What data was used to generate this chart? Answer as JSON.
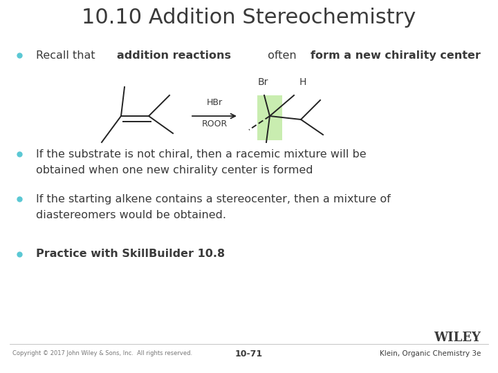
{
  "title": "10.10 Addition Stereochemistry",
  "title_fontsize": 22,
  "title_color": "#3a3a3a",
  "background_color": "#ffffff",
  "bullet_color": "#5bc8d4",
  "bullet1_normal": "Recall that ",
  "bullet1_bold1": "addition reactions",
  "bullet1_normal2": " often ",
  "bullet1_bold2": "form a new chirality center",
  "bullet2_line1": "If the substrate is not chiral, then a racemic mixture will be",
  "bullet2_line2": "obtained when one new chirality center is formed",
  "bullet3_line1": "If the starting alkene contains a stereocenter, then a mixture of",
  "bullet3_line2": "diastereomers would be obtained.",
  "bullet4": "Practice with SkillBuilder 10.8",
  "footer_left": "Copyright © 2017 John Wiley & Sons, Inc.  All rights reserved.",
  "footer_center": "10-71",
  "footer_right_line1": "WILEY",
  "footer_right_line2": "Klein, Organic Chemistry 3e",
  "text_color": "#3a3a3a",
  "body_fontsize": 11.5
}
